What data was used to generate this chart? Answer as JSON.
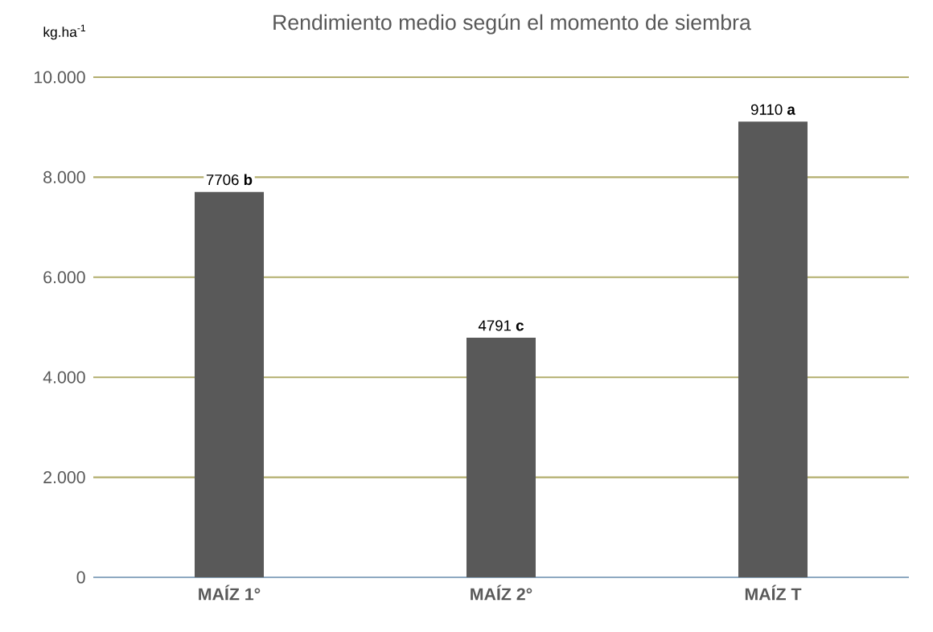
{
  "chart_data": {
    "type": "bar",
    "title": "Rendimiento medio según el momento de siembra",
    "ylabel": "kg.ha$^{-1}$",
    "categories": [
      "MAÍZ 1°",
      "MAÍZ 2°",
      "MAÍZ T"
    ],
    "values": [
      7706,
      4791,
      9110
    ],
    "value_labels": [
      "7706 **b**",
      "4791 **c**",
      "9110 **a**"
    ],
    "color": "#595959",
    "ylim": [
      0,
      10000
    ],
    "yticks": [
      0,
      {
        "value": 2000,
        "label": "2.000"
      },
      {
        "value": 4000,
        "label": "4.000"
      },
      {
        "value": 6000,
        "label": "6.000"
      },
      {
        "value": 8000,
        "label": "8.000"
      },
      {
        "value": 10000,
        "label": "10.000"
      }
    ],
    "grid": "y"
  }
}
